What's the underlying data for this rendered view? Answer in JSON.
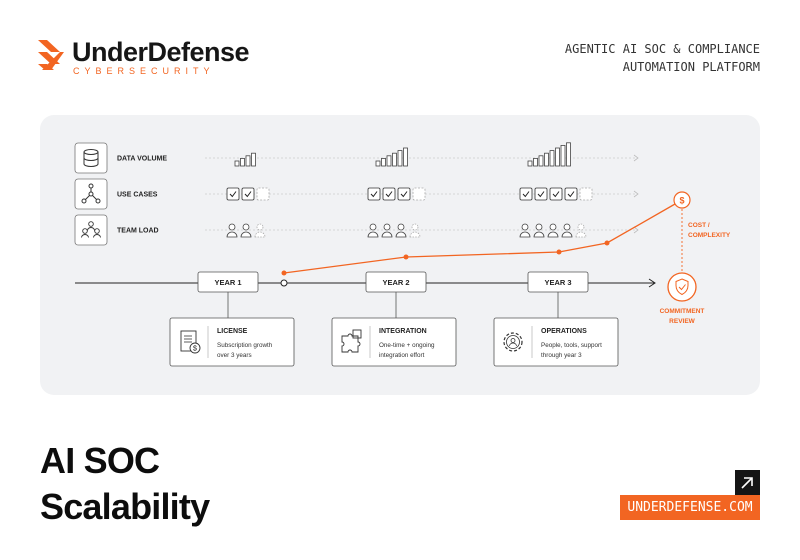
{
  "brand": {
    "name": "UnderDefense",
    "sub": "CYBERSECURITY",
    "accent": "#f26522"
  },
  "tagline": {
    "line1": "AGENTIC AI SOC & COMPLIANCE",
    "line2": "AUTOMATION PLATFORM"
  },
  "diagram": {
    "rows": [
      {
        "label": "DATA VOLUME",
        "icon": "database-icon"
      },
      {
        "label": "USE CASES",
        "icon": "nodes-icon"
      },
      {
        "label": "TEAM LOAD",
        "icon": "team-icon"
      }
    ],
    "years": [
      {
        "label": "YEAR 1",
        "bars": 4,
        "checks": 2,
        "people": 2
      },
      {
        "label": "YEAR 2",
        "bars": 6,
        "checks": 3,
        "people": 3
      },
      {
        "label": "YEAR 3",
        "bars": 8,
        "checks": 4,
        "people": 4
      }
    ],
    "cost_label_1": "COST /",
    "cost_label_2": "COMPLEXITY",
    "cost_symbol": "$",
    "review_label_1": "COMMITMENT",
    "review_label_2": "REVIEW",
    "cards": [
      {
        "title": "LICENSE",
        "line1": "Subscription growth",
        "line2": "over 3 years",
        "icon": "invoice-icon"
      },
      {
        "title": "INTEGRATION",
        "line1": "One-time + ongoing",
        "line2": "integration effort",
        "icon": "puzzle-icon"
      },
      {
        "title": "OPERATIONS",
        "line1": "People, tools, support",
        "line2": "through year 3",
        "icon": "gear-person-icon"
      }
    ]
  },
  "title": {
    "line1": "AI SOC",
    "line2": "Scalability"
  },
  "url": "UNDERDEFENSE.COM"
}
